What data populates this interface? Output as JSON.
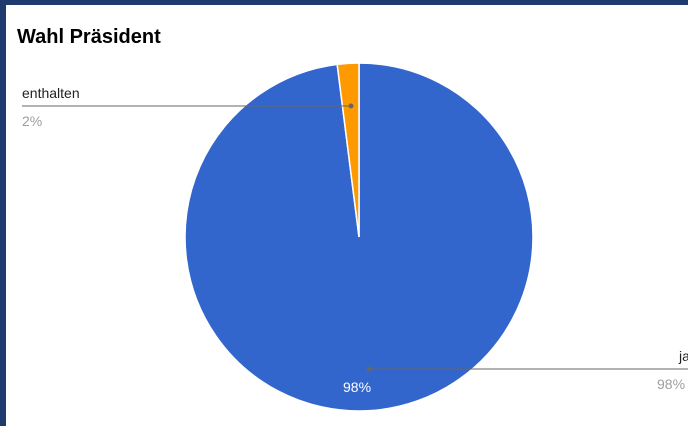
{
  "chart_data": {
    "type": "pie",
    "title": "Wahl Präsident",
    "slices": [
      {
        "label": "ja",
        "value": 98,
        "percent_label": "98%",
        "color": "#3366cc"
      },
      {
        "label": "enthalten",
        "value": 2,
        "percent_label": "2%",
        "color": "#ff9900"
      }
    ],
    "legend": "callout-labels"
  }
}
